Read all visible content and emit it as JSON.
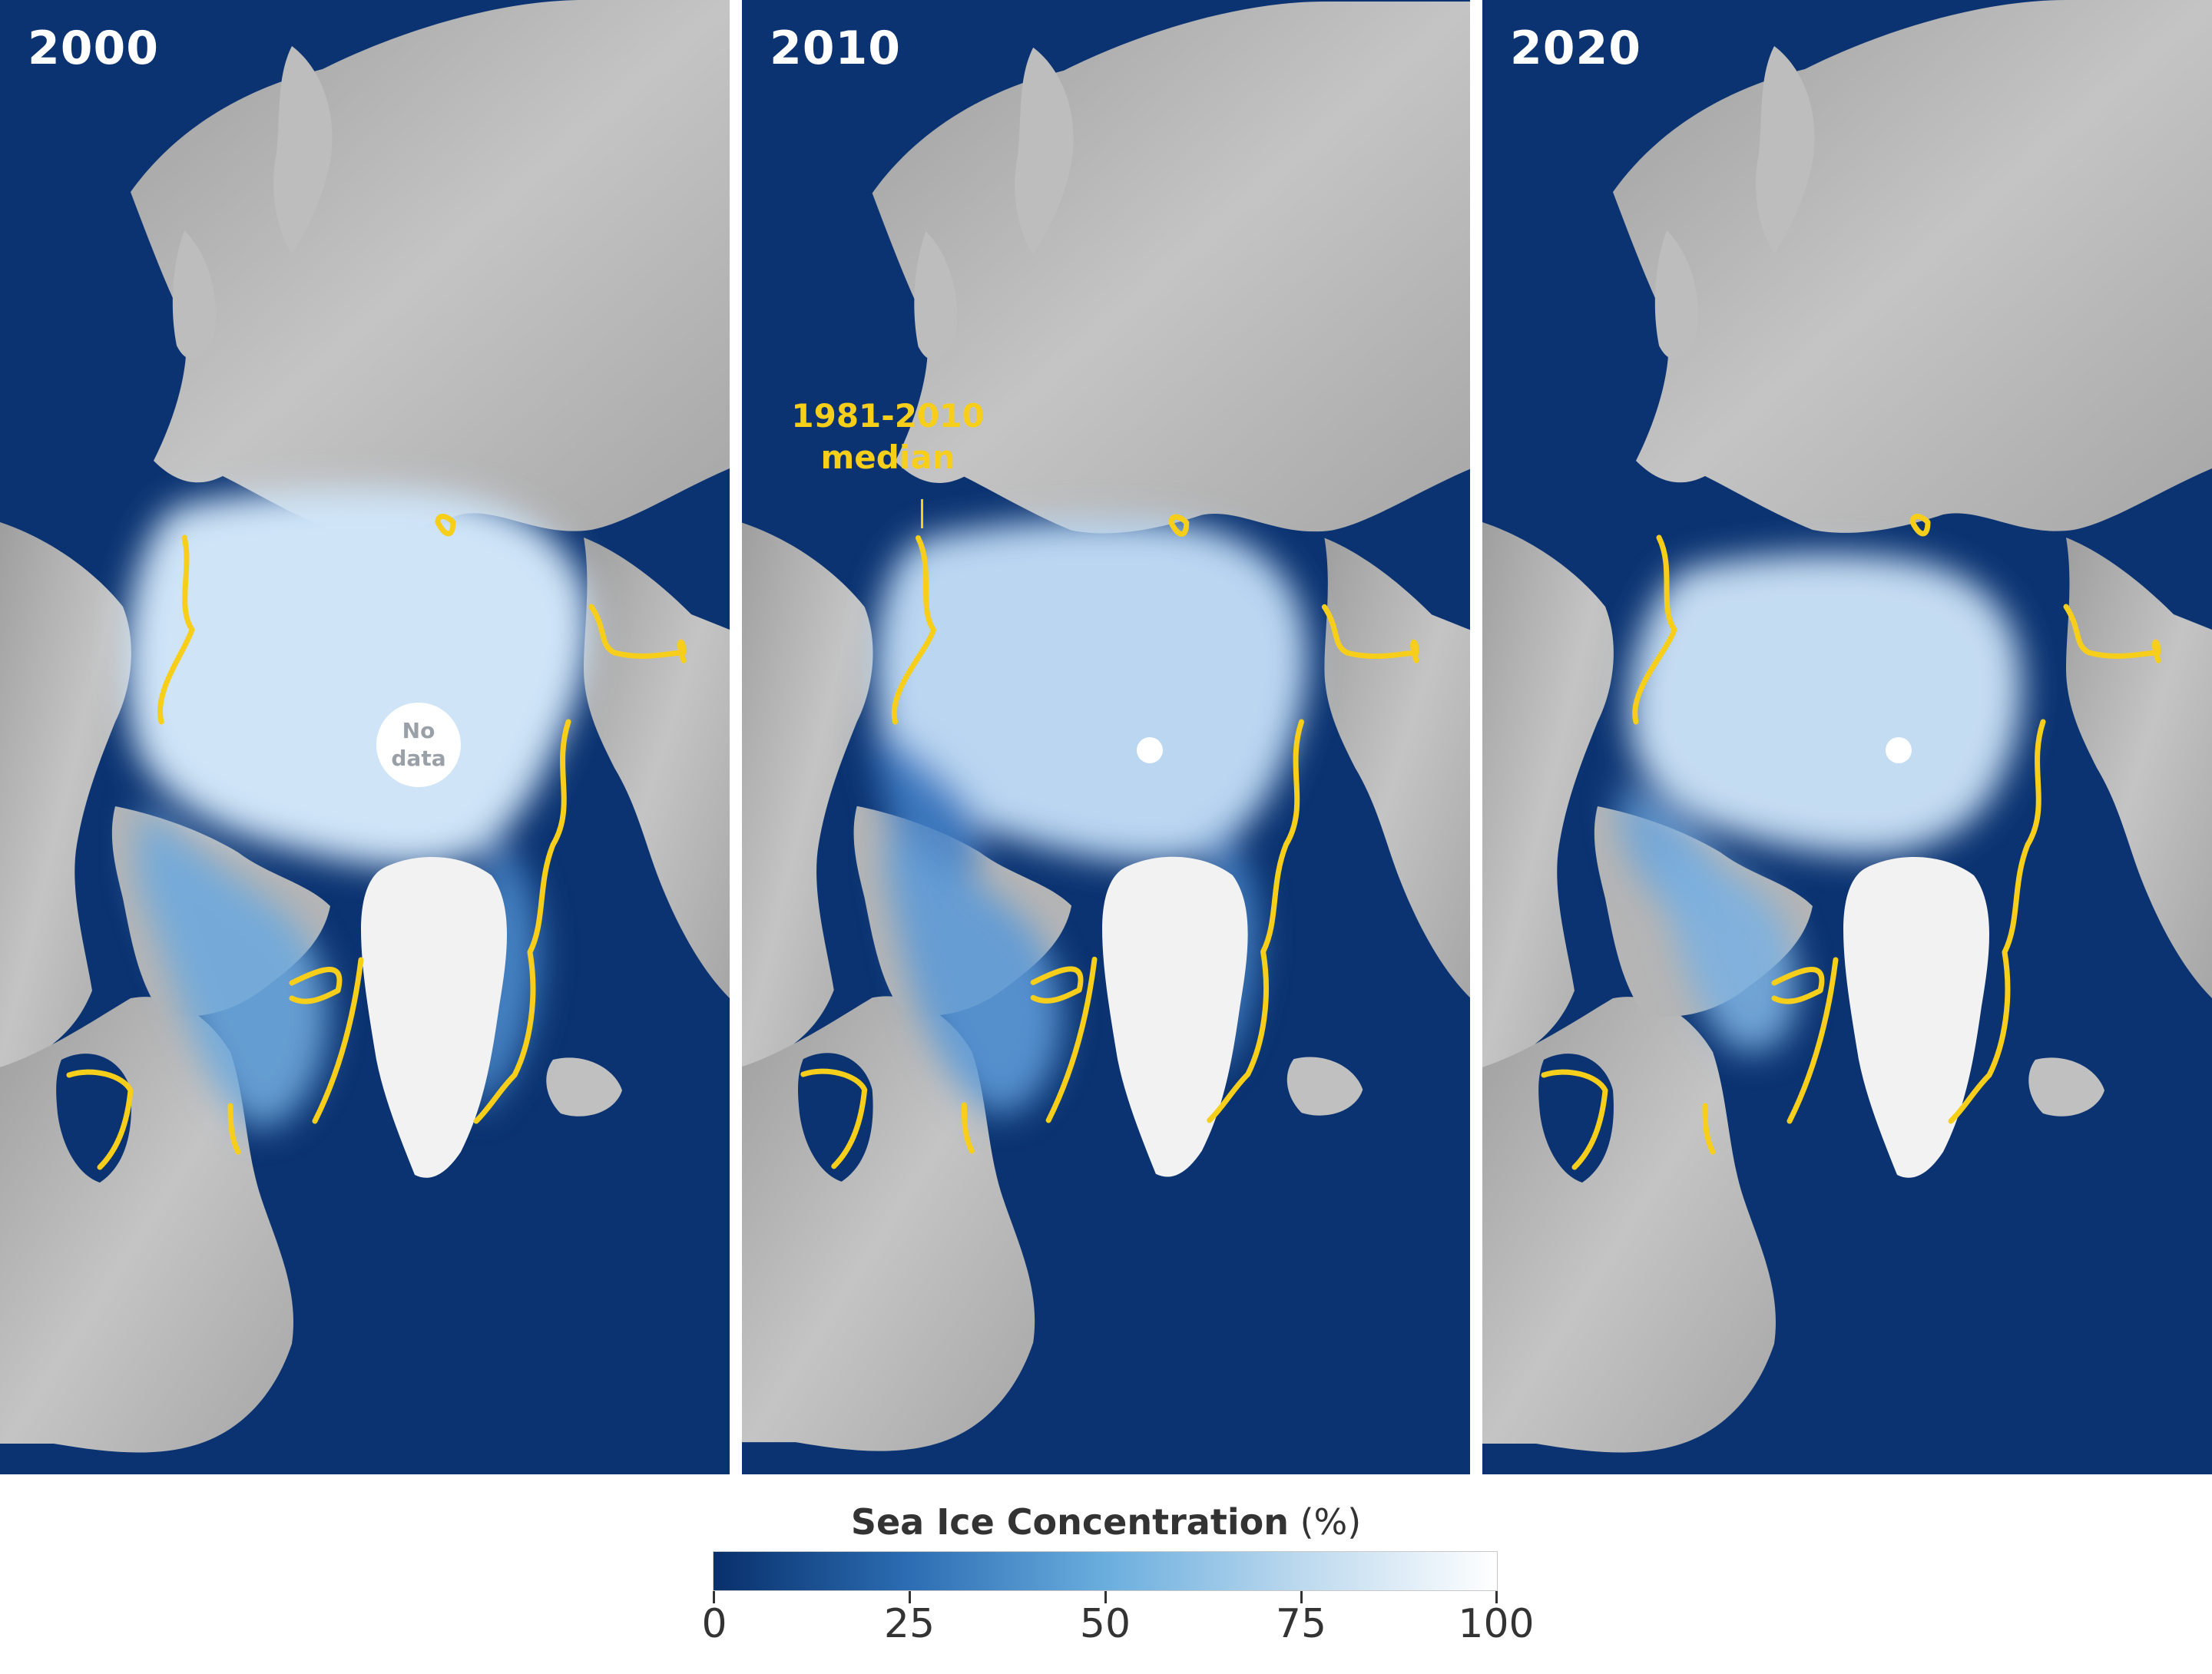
{
  "panels": [
    {
      "year": "2000",
      "nodata_line1": "No",
      "nodata_line2": "data"
    },
    {
      "year": "2010",
      "median_line1": "1981-2010",
      "median_line2": "median"
    },
    {
      "year": "2020"
    }
  ],
  "legend": {
    "title": "Sea Ice Concentration",
    "unit": "(%)",
    "ticks": [
      "0",
      "25",
      "50",
      "75",
      "100"
    ],
    "colors": [
      "#08306b",
      "#2c6db3",
      "#6aaede",
      "#bcd9ee",
      "#ffffff"
    ]
  },
  "colors": {
    "ocean": "#0b3371",
    "land": "#b8b8b8",
    "greenland": "#f2f2f2",
    "median_line": "#f7cf1a"
  }
}
